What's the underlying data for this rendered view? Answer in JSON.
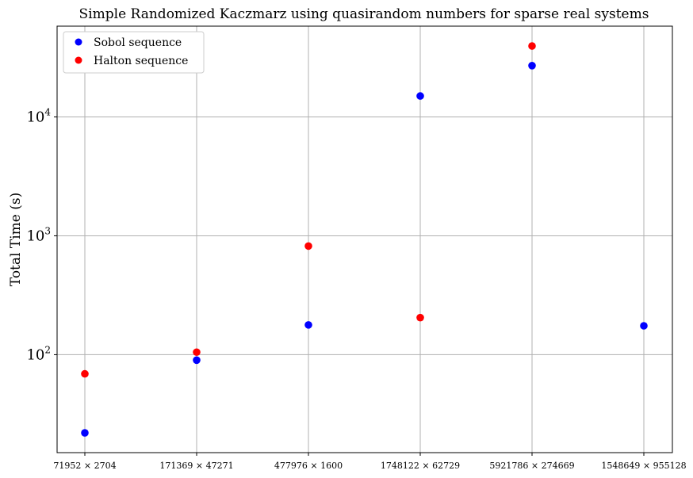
{
  "chart_data": {
    "type": "scatter",
    "title": "Simple Randomized Kaczmarz using quasirandom numbers for sparse real systems",
    "xlabel": "",
    "ylabel": "Total Time (s)",
    "yscale": "log",
    "ylim": [
      15,
      58000
    ],
    "grid": true,
    "legend_position": "top-left",
    "categories": [
      "71952 × 2704",
      "171369 × 47271",
      "477976 × 1600",
      "1748122 × 62729",
      "5921786 × 274669",
      "1548649 × 955128"
    ],
    "yticks": [
      {
        "base": "10",
        "exp": "2",
        "value": 100
      },
      {
        "base": "10",
        "exp": "3",
        "value": 1000
      },
      {
        "base": "10",
        "exp": "4",
        "value": 10000
      }
    ],
    "series": [
      {
        "name": "Sobol sequence",
        "color": "#0000ff",
        "values": [
          22,
          90,
          178,
          15000,
          27000,
          175
        ]
      },
      {
        "name": "Halton sequence",
        "color": "#ff0000",
        "values": [
          69,
          105,
          820,
          205,
          39500,
          null
        ]
      }
    ]
  }
}
